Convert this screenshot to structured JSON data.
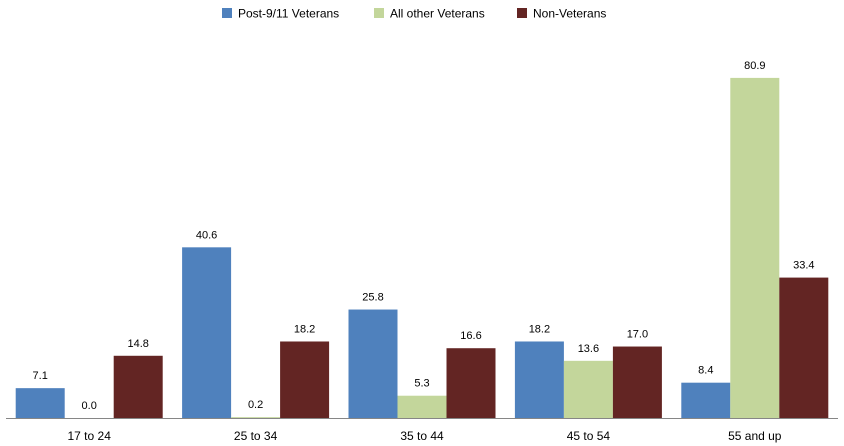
{
  "chart_data": {
    "type": "bar",
    "title": "",
    "xlabel": "",
    "ylabel": "",
    "ylim": [
      0,
      85
    ],
    "grid": false,
    "legend_position": "top",
    "categories": [
      "17 to 24",
      "25 to 34",
      "35 to 44",
      "45 to 54",
      "55 and up"
    ],
    "series": [
      {
        "name": "Post-9/11 Veterans",
        "color": "#4F81BD",
        "values": [
          7.1,
          40.6,
          25.8,
          18.2,
          8.4
        ],
        "labels": [
          "7.1",
          "40.6",
          "25.8",
          "18.2",
          "8.4"
        ]
      },
      {
        "name": "All other Veterans",
        "color": "#C3D69B",
        "values": [
          0.0,
          0.2,
          5.3,
          13.6,
          80.9
        ],
        "labels": [
          "0.0",
          "0.2",
          "5.3",
          "13.6",
          "80.9"
        ]
      },
      {
        "name": "Non-Veterans",
        "color": "#632523",
        "values": [
          14.8,
          18.2,
          16.6,
          17.0,
          33.4
        ],
        "labels": [
          "14.8",
          "18.2",
          "16.6",
          "17.0",
          "33.4"
        ]
      }
    ]
  }
}
